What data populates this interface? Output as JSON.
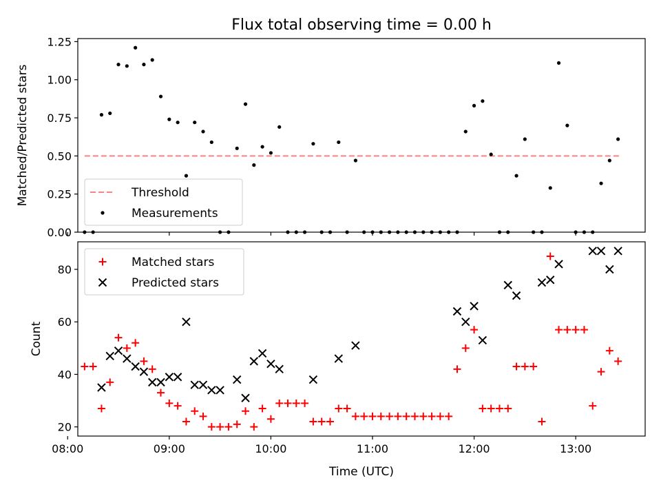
{
  "figure_title": "Flux total observing time = 0.00 h",
  "chart_data": [
    {
      "type": "scatter",
      "title": "Flux total observing time = 0.00 h",
      "xlabel": "",
      "ylabel": "Matched/Predicted stars",
      "xlim": [
        "08:06",
        "13:41"
      ],
      "ylim": [
        0.0,
        1.27
      ],
      "yticks": [
        0.0,
        0.25,
        0.5,
        0.75,
        1.0,
        1.25
      ],
      "ytick_labels": [
        "0.00",
        "0.25",
        "0.50",
        "0.75",
        "1.00",
        "1.25"
      ],
      "xticks": [
        "08:00",
        "09:00",
        "10:00",
        "11:00",
        "12:00",
        "13:00"
      ],
      "grid": false,
      "legend_position": "lower-left",
      "series": [
        {
          "name": "Threshold",
          "kind": "dashed-line",
          "color": "#ff8080",
          "x": [
            "08:10",
            "13:26"
          ],
          "y": [
            0.5,
            0.5
          ]
        },
        {
          "name": "Measurements",
          "kind": "dot",
          "color": "#000000",
          "x": [
            "08:10",
            "08:15",
            "08:20",
            "08:25",
            "08:30",
            "08:35",
            "08:40",
            "08:45",
            "08:50",
            "08:55",
            "09:00",
            "09:05",
            "09:10",
            "09:15",
            "09:20",
            "09:25",
            "09:30",
            "09:35",
            "09:40",
            "09:45",
            "09:50",
            "09:55",
            "10:00",
            "10:05",
            "10:10",
            "10:15",
            "10:20",
            "10:25",
            "10:30",
            "10:35",
            "10:40",
            "10:45",
            "10:50",
            "10:55",
            "11:00",
            "11:05",
            "11:10",
            "11:15",
            "11:20",
            "11:25",
            "11:30",
            "11:35",
            "11:40",
            "11:45",
            "11:50",
            "11:55",
            "12:00",
            "12:05",
            "12:10",
            "12:15",
            "12:20",
            "12:25",
            "12:30",
            "12:35",
            "12:40",
            "12:45",
            "12:50",
            "12:55",
            "13:00",
            "13:05",
            "13:10",
            "13:15",
            "13:20",
            "13:25"
          ],
          "y": [
            0.0,
            0.0,
            0.77,
            0.78,
            1.1,
            1.09,
            1.21,
            1.1,
            1.13,
            0.89,
            0.74,
            0.72,
            0.37,
            0.72,
            0.66,
            0.59,
            0.0,
            0.0,
            0.55,
            0.84,
            0.44,
            0.56,
            0.52,
            0.69,
            0.0,
            0.0,
            0.0,
            0.58,
            0.0,
            0.0,
            0.59,
            0.0,
            0.47,
            0.0,
            0.0,
            0.0,
            0.0,
            0.0,
            0.0,
            0.0,
            0.0,
            0.0,
            0.0,
            0.0,
            0.0,
            0.66,
            0.83,
            0.86,
            0.51,
            0.0,
            0.0,
            0.37,
            0.61,
            0.0,
            0.0,
            0.29,
            1.11,
            0.7,
            0.0,
            0.0,
            0.0,
            0.32,
            0.47,
            0.61
          ]
        }
      ]
    },
    {
      "type": "scatter",
      "title": "",
      "xlabel": "Time (UTC)",
      "ylabel": "Count",
      "xlim": [
        "08:06",
        "13:41"
      ],
      "ylim": [
        16.5,
        90.5
      ],
      "yticks": [
        20,
        40,
        60,
        80
      ],
      "ytick_labels": [
        "20",
        "40",
        "60",
        "80"
      ],
      "xticks": [
        "08:00",
        "09:00",
        "10:00",
        "11:00",
        "12:00",
        "13:00"
      ],
      "grid": false,
      "legend_position": "upper-left",
      "series": [
        {
          "name": "Matched stars",
          "kind": "plus",
          "color": "#ff0000",
          "x": [
            "08:10",
            "08:15",
            "08:20",
            "08:25",
            "08:30",
            "08:35",
            "08:40",
            "08:45",
            "08:50",
            "08:55",
            "09:00",
            "09:05",
            "09:10",
            "09:15",
            "09:20",
            "09:25",
            "09:30",
            "09:35",
            "09:40",
            "09:45",
            "09:50",
            "09:55",
            "10:00",
            "10:05",
            "10:10",
            "10:15",
            "10:20",
            "10:25",
            "10:30",
            "10:35",
            "10:40",
            "10:45",
            "10:50",
            "10:55",
            "11:00",
            "11:05",
            "11:10",
            "11:15",
            "11:20",
            "11:25",
            "11:30",
            "11:35",
            "11:40",
            "11:45",
            "11:50",
            "11:55",
            "12:00",
            "12:05",
            "12:10",
            "12:15",
            "12:20",
            "12:25",
            "12:30",
            "12:35",
            "12:40",
            "12:45",
            "12:50",
            "12:55",
            "13:00",
            "13:05",
            "13:10",
            "13:15",
            "13:20",
            "13:25"
          ],
          "y": [
            43,
            43,
            27,
            37,
            54,
            50,
            52,
            45,
            42,
            33,
            29,
            28,
            22,
            26,
            24,
            20,
            20,
            20,
            21,
            26,
            20,
            27,
            23,
            29,
            29,
            29,
            29,
            22,
            22,
            22,
            27,
            27,
            24,
            24,
            24,
            24,
            24,
            24,
            24,
            24,
            24,
            24,
            24,
            24,
            42,
            50,
            57,
            27,
            27,
            27,
            27,
            43,
            43,
            43,
            22,
            85,
            57,
            57,
            57,
            57,
            28,
            41,
            49,
            45
          ]
        },
        {
          "name": "Predicted stars",
          "kind": "cross",
          "color": "#000000",
          "x": [
            "08:20",
            "08:25",
            "08:30",
            "08:35",
            "08:40",
            "08:45",
            "08:50",
            "08:55",
            "09:00",
            "09:05",
            "09:10",
            "09:15",
            "09:20",
            "09:25",
            "09:30",
            "09:40",
            "09:45",
            "09:50",
            "09:55",
            "10:00",
            "10:05",
            "10:25",
            "10:40",
            "10:50",
            "11:50",
            "11:55",
            "12:00",
            "12:05",
            "12:20",
            "12:25",
            "12:40",
            "12:45",
            "12:50",
            "13:10",
            "13:15",
            "13:20",
            "13:25"
          ],
          "y": [
            35,
            47,
            49,
            46,
            43,
            41,
            37,
            37,
            39,
            39,
            60,
            36,
            36,
            34,
            34,
            38,
            31,
            45,
            48,
            44,
            42,
            38,
            46,
            51,
            64,
            60,
            66,
            53,
            74,
            70,
            75,
            76,
            82,
            87,
            87,
            80,
            87
          ]
        }
      ]
    }
  ]
}
